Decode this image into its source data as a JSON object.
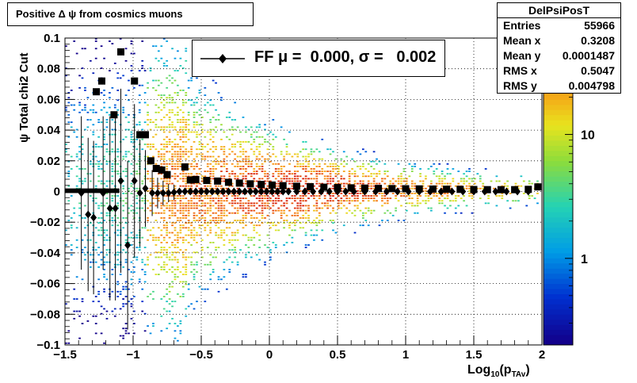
{
  "title": "Positive Δ ψ from cosmics muons",
  "stats": {
    "name": "DelPsiPosT",
    "rows": [
      {
        "label": "Entries",
        "value": "55966"
      },
      {
        "label": "Mean x",
        "value": "0.3208"
      },
      {
        "label": "Mean y",
        "value": "0.0001487"
      },
      {
        "label": "RMS x",
        "value": "0.5047"
      },
      {
        "label": "RMS y",
        "value": "0.004798"
      }
    ]
  },
  "legend": {
    "text": "FF μ =  0.000, σ =   0.002"
  },
  "axes": {
    "ylabel": "ψ Total chi2 Cut",
    "xlabel_main": "Log",
    "xlabel_sub": "10",
    "xlabel_rest": "(p",
    "xlabel_sub2": "TAv",
    "xlabel_end": ")"
  },
  "chart_data": {
    "type": "heatmap",
    "xlim": [
      -1.5,
      2.0
    ],
    "ylim": [
      -0.1,
      0.1
    ],
    "x_ticks": [
      "−1.5",
      "−1",
      "−0.5",
      "0",
      "0.5",
      "1",
      "1.5",
      "2"
    ],
    "x_tick_values": [
      -1.5,
      -1,
      -0.5,
      0,
      0.5,
      1,
      1.5,
      2
    ],
    "y_ticks": [
      "−0.1",
      "−0.08",
      "−0.06",
      "−0.04",
      "−0.02",
      "0",
      "0.02",
      "0.04",
      "0.06",
      "0.08",
      "0.1"
    ],
    "y_tick_values": [
      -0.1,
      -0.08,
      -0.06,
      -0.04,
      -0.02,
      0,
      0.02,
      0.04,
      0.06,
      0.08,
      0.1
    ],
    "grid": true,
    "log_z": true,
    "z_ticks": [
      "10",
      "1"
    ],
    "z_tick_values": [
      10,
      1
    ],
    "z_range": [
      0.2,
      60
    ],
    "sigma_series": {
      "marker": "square",
      "points": [
        [
          -1.27,
          0.065
        ],
        [
          -1.23,
          0.072
        ],
        [
          -1.14,
          0.05
        ],
        [
          -1.09,
          0.091
        ],
        [
          -0.99,
          0.072
        ],
        [
          -0.95,
          0.037
        ],
        [
          -0.91,
          0.037
        ],
        [
          -0.87,
          0.02
        ],
        [
          -0.83,
          0.015
        ],
        [
          -0.79,
          0.014
        ],
        [
          -0.75,
          0.011
        ],
        [
          -0.62,
          0.016
        ],
        [
          -0.58,
          0.0075
        ],
        [
          -0.54,
          0.0078
        ],
        [
          -0.46,
          0.0072
        ],
        [
          -0.38,
          0.0068
        ],
        [
          -0.3,
          0.006
        ],
        [
          -0.22,
          0.0055
        ],
        [
          -0.14,
          0.005
        ],
        [
          -0.06,
          0.0046
        ],
        [
          0.02,
          0.0042
        ],
        [
          0.1,
          0.0038
        ],
        [
          0.2,
          0.0034
        ],
        [
          0.3,
          0.0031
        ],
        [
          0.4,
          0.0028
        ],
        [
          0.5,
          0.0026
        ],
        [
          0.6,
          0.0024
        ],
        [
          0.7,
          0.0022
        ],
        [
          0.8,
          0.002
        ],
        [
          0.9,
          0.0019
        ],
        [
          1.0,
          0.0018
        ],
        [
          1.1,
          0.0017
        ],
        [
          1.2,
          0.0016
        ],
        [
          1.3,
          0.0015
        ],
        [
          1.4,
          0.0014
        ],
        [
          1.5,
          0.0013
        ],
        [
          1.6,
          0.0012
        ],
        [
          1.7,
          0.0012
        ],
        [
          1.8,
          0.0012
        ],
        [
          1.9,
          0.0014
        ],
        [
          1.97,
          0.003
        ]
      ]
    },
    "mean_series": {
      "marker": "diamond",
      "points": [
        [
          -1.38,
          -0.001,
          0.05
        ],
        [
          -1.33,
          -0.015,
          0.05
        ],
        [
          -1.29,
          -0.017,
          0.05
        ],
        [
          -1.22,
          -0.001,
          0.05
        ],
        [
          -1.17,
          -0.011,
          0.06
        ],
        [
          -1.13,
          -0.011,
          0.06
        ],
        [
          -1.09,
          0.007,
          0.06
        ],
        [
          -1.04,
          -0.035,
          0.055
        ],
        [
          -0.99,
          0.007,
          0.05
        ],
        [
          -0.95,
          -0.001,
          0.035
        ],
        [
          -0.91,
          0.002,
          0.025
        ],
        [
          -0.86,
          -0.001,
          0.015
        ],
        [
          -0.82,
          -0.001,
          0.01
        ],
        [
          -0.78,
          -0.001,
          0.008
        ],
        [
          -0.74,
          -0.001,
          0.006
        ],
        [
          -0.7,
          -0.0005,
          0.005
        ],
        [
          -0.66,
          0,
          0
        ],
        [
          -0.62,
          0,
          0
        ],
        [
          -0.58,
          0,
          0
        ],
        [
          -0.54,
          0,
          0
        ],
        [
          -0.5,
          0,
          0
        ],
        [
          -0.46,
          0,
          0
        ],
        [
          -0.42,
          0,
          0
        ],
        [
          -0.38,
          0,
          0
        ],
        [
          -0.34,
          0,
          0
        ],
        [
          -0.3,
          0,
          0
        ],
        [
          -0.26,
          0,
          0
        ],
        [
          -0.22,
          0,
          0
        ],
        [
          -0.18,
          0,
          0
        ],
        [
          -0.14,
          0,
          0
        ],
        [
          -0.1,
          0,
          0
        ],
        [
          -0.06,
          0,
          0
        ],
        [
          -0.02,
          0,
          0
        ],
        [
          0.02,
          0,
          0
        ],
        [
          0.06,
          0,
          0
        ],
        [
          0.1,
          0,
          0
        ],
        [
          0.14,
          0,
          0
        ],
        [
          0.2,
          0,
          0
        ],
        [
          0.26,
          0,
          0
        ],
        [
          0.32,
          0,
          0
        ],
        [
          0.38,
          0,
          0
        ],
        [
          0.44,
          0,
          0
        ],
        [
          0.5,
          0,
          0
        ],
        [
          0.56,
          0,
          0
        ],
        [
          0.62,
          0,
          0
        ],
        [
          0.7,
          0,
          0
        ],
        [
          0.78,
          0,
          0
        ],
        [
          0.86,
          0,
          0
        ],
        [
          0.94,
          0,
          0
        ],
        [
          1.02,
          0,
          0
        ],
        [
          1.1,
          0,
          0
        ],
        [
          1.18,
          0,
          0
        ],
        [
          1.26,
          0,
          0
        ],
        [
          1.34,
          0,
          0
        ],
        [
          1.42,
          0,
          0
        ],
        [
          1.5,
          0,
          0
        ],
        [
          1.58,
          0,
          0
        ],
        [
          1.66,
          0,
          0
        ],
        [
          1.74,
          0,
          0
        ],
        [
          1.82,
          0,
          0
        ],
        [
          1.9,
          0,
          0
        ]
      ]
    }
  }
}
